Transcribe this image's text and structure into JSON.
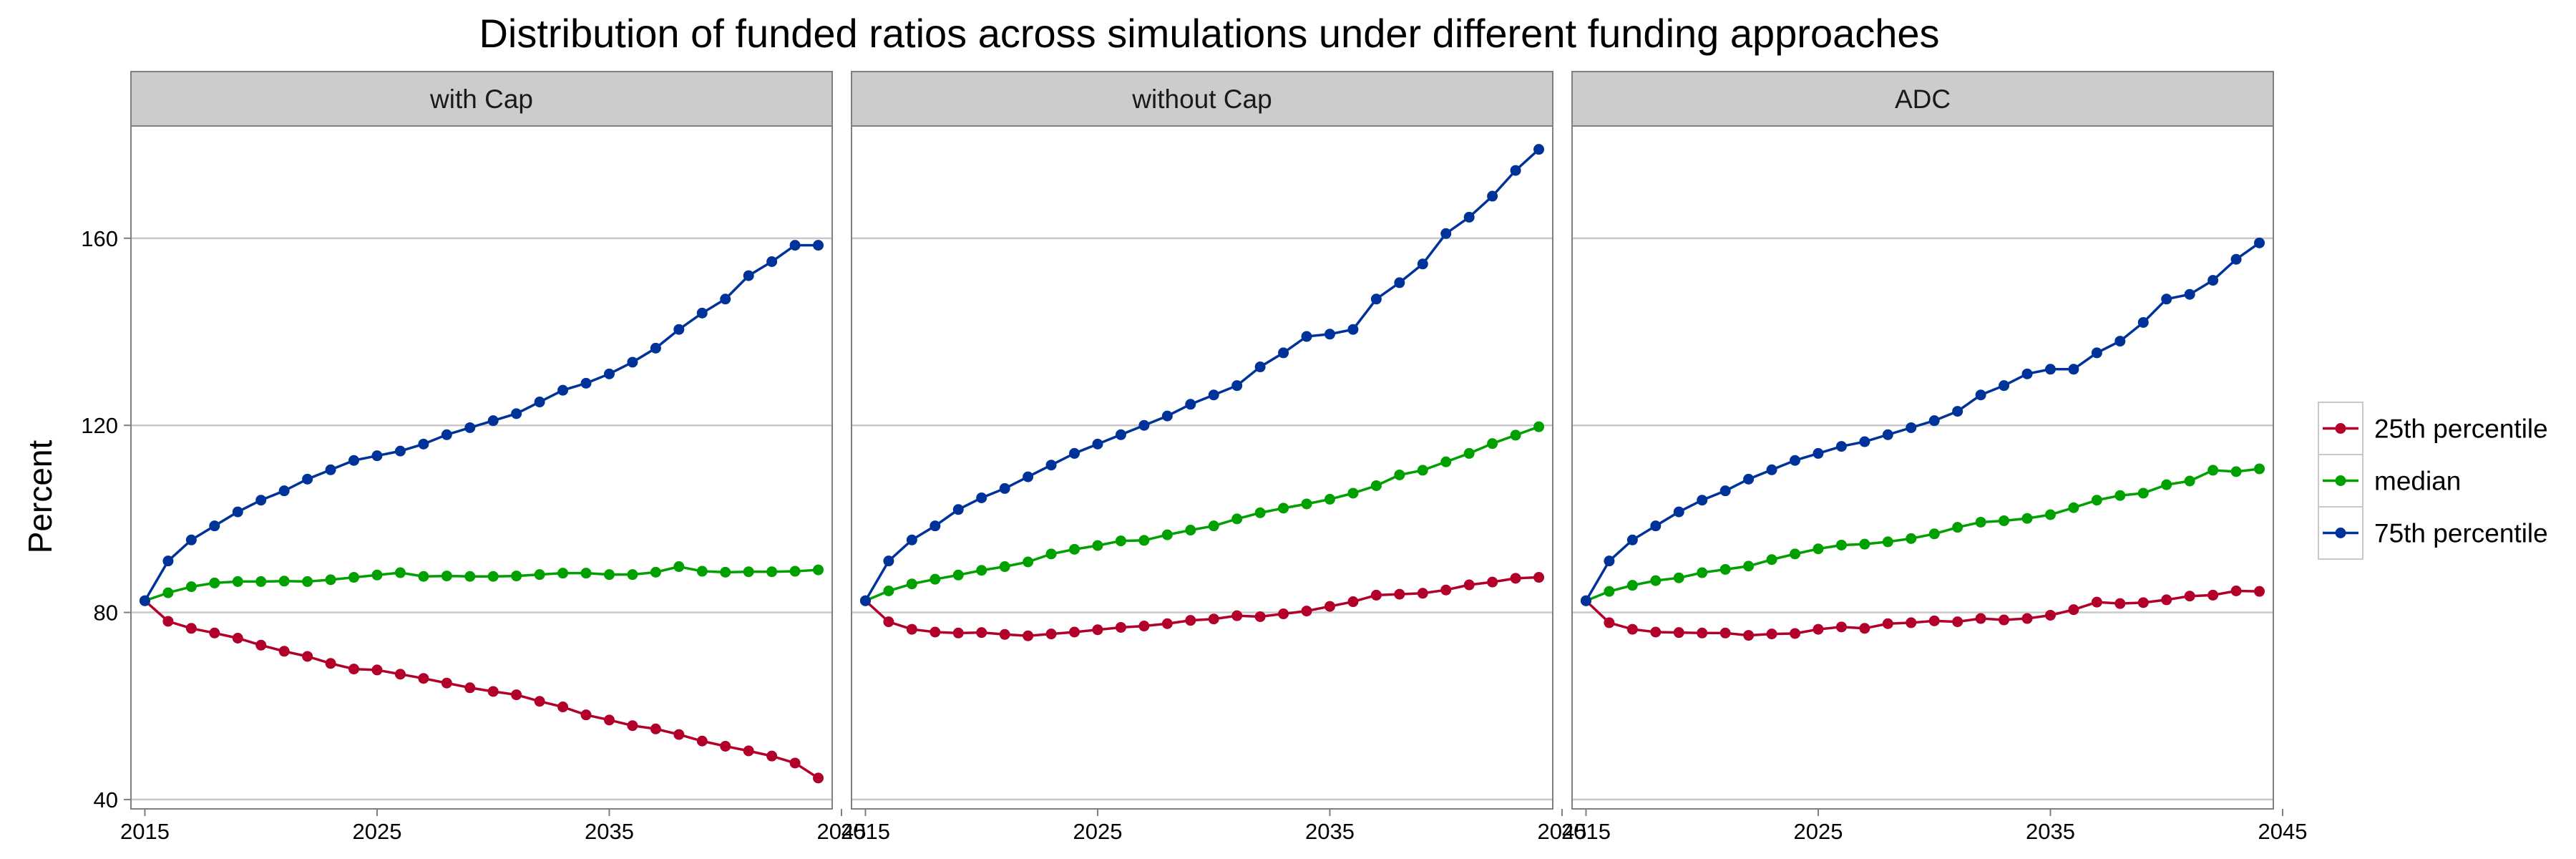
{
  "chart_data": {
    "type": "line",
    "title": "Distribution of funded ratios across simulations under different funding approaches",
    "ylabel": "Percent",
    "xlabel": "",
    "xlim": [
      2014.4,
      2044.6
    ],
    "ylim": [
      38,
      184
    ],
    "x_ticks": [
      2015,
      2025,
      2035,
      2045
    ],
    "y_ticks": [
      40,
      80,
      120,
      160
    ],
    "x": [
      2015,
      2016,
      2017,
      2018,
      2019,
      2020,
      2021,
      2022,
      2023,
      2024,
      2025,
      2026,
      2027,
      2028,
      2029,
      2030,
      2031,
      2032,
      2033,
      2034,
      2035,
      2036,
      2037,
      2038,
      2039,
      2040,
      2041,
      2042,
      2043,
      2044
    ],
    "legend": {
      "position": "right",
      "entries": [
        {
          "name": "25th percentile",
          "color": "#B2002A"
        },
        {
          "name": "median",
          "color": "#00A000"
        },
        {
          "name": "75th percentile",
          "color": "#003399"
        }
      ]
    },
    "panels": [
      {
        "strip": "with Cap",
        "series": [
          {
            "name": "25th percentile",
            "color": "#B2002A",
            "values": [
              82.5,
              78.1,
              76.6,
              75.6,
              74.5,
              73.0,
              71.7,
              70.6,
              69.1,
              67.9,
              67.7,
              66.8,
              65.9,
              64.9,
              63.9,
              63.1,
              62.4,
              61.0,
              59.8,
              58.1,
              57.0,
              55.8,
              55.1,
              53.9,
              52.5,
              51.4,
              50.4,
              49.3,
              47.8,
              44.6
            ]
          },
          {
            "name": "median",
            "color": "#00A000",
            "values": [
              82.5,
              84.2,
              85.5,
              86.3,
              86.6,
              86.6,
              86.7,
              86.6,
              87.0,
              87.5,
              88.0,
              88.5,
              87.7,
              87.8,
              87.7,
              87.7,
              87.8,
              88.1,
              88.4,
              88.4,
              88.1,
              88.1,
              88.6,
              89.8,
              88.8,
              88.6,
              88.7,
              88.7,
              88.8,
              89.1
            ]
          },
          {
            "name": "75th percentile",
            "color": "#003399",
            "values": [
              82.5,
              91.0,
              95.5,
              98.5,
              101.5,
              104.0,
              106.0,
              108.5,
              110.5,
              112.5,
              113.5,
              114.5,
              116.0,
              118.0,
              119.5,
              121.0,
              122.5,
              125.0,
              127.5,
              129.0,
              131.0,
              133.5,
              136.5,
              140.5,
              144.0,
              147.0,
              152.0,
              155.0,
              158.5,
              158.5
            ]
          }
        ]
      },
      {
        "strip": "without Cap",
        "series": [
          {
            "name": "25th percentile",
            "color": "#B2002A",
            "values": [
              82.5,
              78.0,
              76.4,
              75.8,
              75.6,
              75.7,
              75.3,
              75.0,
              75.4,
              75.8,
              76.3,
              76.8,
              77.1,
              77.6,
              78.3,
              78.6,
              79.3,
              79.1,
              79.7,
              80.3,
              81.3,
              82.3,
              83.7,
              83.9,
              84.1,
              84.8,
              85.9,
              86.5,
              87.3,
              87.5
            ]
          },
          {
            "name": "median",
            "color": "#00A000",
            "values": [
              82.5,
              84.6,
              86.1,
              87.1,
              88.0,
              89.0,
              89.8,
              90.8,
              92.5,
              93.5,
              94.3,
              95.3,
              95.4,
              96.6,
              97.6,
              98.5,
              100.0,
              101.3,
              102.3,
              103.2,
              104.2,
              105.5,
              107.1,
              109.4,
              110.4,
              112.2,
              114.0,
              116.1,
              117.9,
              119.7
            ]
          },
          {
            "name": "75th percentile",
            "color": "#003399",
            "values": [
              82.5,
              91.0,
              95.5,
              98.5,
              102.0,
              104.5,
              106.5,
              109.0,
              111.5,
              114.0,
              116.0,
              118.0,
              120.0,
              122.0,
              124.5,
              126.5,
              128.5,
              132.5,
              135.5,
              139.0,
              139.5,
              140.5,
              147.0,
              150.5,
              154.5,
              161.0,
              164.5,
              169.0,
              174.5,
              179.0
            ]
          }
        ]
      },
      {
        "strip": "ADC",
        "series": [
          {
            "name": "25th percentile",
            "color": "#B2002A",
            "values": [
              82.5,
              77.8,
              76.4,
              75.8,
              75.7,
              75.6,
              75.6,
              75.1,
              75.4,
              75.5,
              76.4,
              76.9,
              76.6,
              77.6,
              77.8,
              78.2,
              78.0,
              78.7,
              78.4,
              78.7,
              79.4,
              80.6,
              82.2,
              81.9,
              82.1,
              82.7,
              83.5,
              83.7,
              84.6,
              84.5
            ]
          },
          {
            "name": "median",
            "color": "#00A000",
            "values": [
              82.5,
              84.5,
              85.8,
              86.8,
              87.4,
              88.5,
              89.2,
              89.9,
              91.3,
              92.5,
              93.6,
              94.4,
              94.6,
              95.1,
              95.8,
              96.8,
              98.2,
              99.3,
              99.6,
              100.1,
              100.9,
              102.4,
              104.0,
              105.0,
              105.5,
              107.3,
              108.1,
              110.4,
              110.1,
              110.7
            ]
          },
          {
            "name": "75th percentile",
            "color": "#003399",
            "values": [
              82.5,
              91.0,
              95.5,
              98.5,
              101.5,
              104.0,
              106.0,
              108.5,
              110.5,
              112.5,
              114.0,
              115.5,
              116.5,
              118.0,
              119.5,
              121.0,
              123.0,
              126.5,
              128.5,
              131.0,
              132.0,
              132.0,
              135.5,
              138.0,
              142.0,
              147.0,
              148.0,
              151.0,
              155.5,
              159.0
            ]
          }
        ]
      }
    ]
  }
}
